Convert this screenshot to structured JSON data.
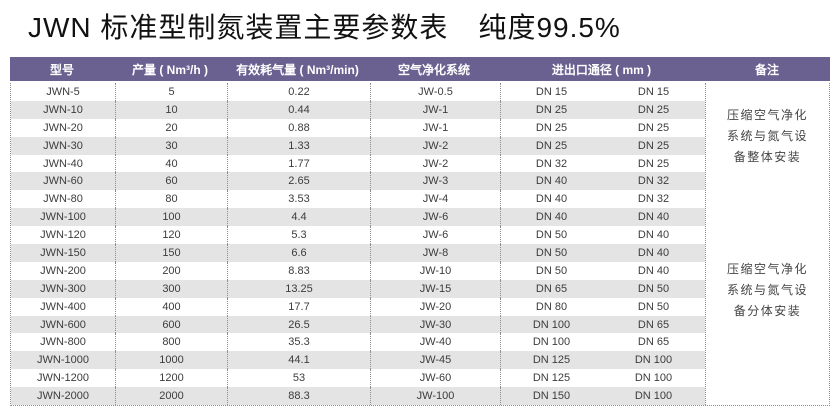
{
  "title": {
    "main": "JWN 标准型制氮装置主要参数表",
    "purity": "纯度99.5%"
  },
  "colors": {
    "header_bg": "#6a6191",
    "header_text": "#ffffff",
    "stripe_gray": "#e4e4e4",
    "body_text": "#3c3c3c",
    "dotted_border": "#8f8f8f"
  },
  "table": {
    "headers": {
      "model": "型号",
      "output": "产量 ( Nm³/h )",
      "air_consumption": "有效耗气量 ( Nm³/min)",
      "purification": "空气净化系统",
      "pipe_diameter": "进出口通径 ( mm )",
      "remark": "备注"
    },
    "rows": [
      {
        "model": "JWN-5",
        "output": "5",
        "air_consumption": "0.22",
        "purification": "JW-0.5",
        "dn_inlet": "DN 15",
        "dn_outlet": "DN 15"
      },
      {
        "model": "JWN-10",
        "output": "10",
        "air_consumption": "0.44",
        "purification": "JW-1",
        "dn_inlet": "DN 25",
        "dn_outlet": "DN 25"
      },
      {
        "model": "JWN-20",
        "output": "20",
        "air_consumption": "0.88",
        "purification": "JW-1",
        "dn_inlet": "DN 25",
        "dn_outlet": "DN 25"
      },
      {
        "model": "JWN-30",
        "output": "30",
        "air_consumption": "1.33",
        "purification": "JW-2",
        "dn_inlet": "DN 25",
        "dn_outlet": "DN 25"
      },
      {
        "model": "JWN-40",
        "output": "40",
        "air_consumption": "1.77",
        "purification": "JW-2",
        "dn_inlet": "DN 32",
        "dn_outlet": "DN 25"
      },
      {
        "model": "JWN-60",
        "output": "60",
        "air_consumption": "2.65",
        "purification": "JW-3",
        "dn_inlet": "DN 40",
        "dn_outlet": "DN 32"
      },
      {
        "model": "JWN-80",
        "output": "80",
        "air_consumption": "3.53",
        "purification": "JW-4",
        "dn_inlet": "DN 40",
        "dn_outlet": "DN 32"
      },
      {
        "model": "JWN-100",
        "output": "100",
        "air_consumption": "4.4",
        "purification": "JW-6",
        "dn_inlet": "DN 40",
        "dn_outlet": "DN 40"
      },
      {
        "model": "JWN-120",
        "output": "120",
        "air_consumption": "5.3",
        "purification": "JW-6",
        "dn_inlet": "DN 50",
        "dn_outlet": "DN 40"
      },
      {
        "model": "JWN-150",
        "output": "150",
        "air_consumption": "6.6",
        "purification": "JW-8",
        "dn_inlet": "DN 50",
        "dn_outlet": "DN 40"
      },
      {
        "model": "JWN-200",
        "output": "200",
        "air_consumption": "8.83",
        "purification": "JW-10",
        "dn_inlet": "DN 50",
        "dn_outlet": "DN 40"
      },
      {
        "model": "JWN-300",
        "output": "300",
        "air_consumption": "13.25",
        "purification": "JW-15",
        "dn_inlet": "DN 65",
        "dn_outlet": "DN 50"
      },
      {
        "model": "JWN-400",
        "output": "400",
        "air_consumption": "17.7",
        "purification": "JW-20",
        "dn_inlet": "DN 80",
        "dn_outlet": "DN 50"
      },
      {
        "model": "JWN-600",
        "output": "600",
        "air_consumption": "26.5",
        "purification": "JW-30",
        "dn_inlet": "DN 100",
        "dn_outlet": "DN 65"
      },
      {
        "model": "JWN-800",
        "output": "800",
        "air_consumption": "35.3",
        "purification": "JW-40",
        "dn_inlet": "DN 100",
        "dn_outlet": "DN 65"
      },
      {
        "model": "JWN-1000",
        "output": "1000",
        "air_consumption": "44.1",
        "purification": "JW-45",
        "dn_inlet": "DN 125",
        "dn_outlet": "DN 100"
      },
      {
        "model": "JWN-1200",
        "output": "1200",
        "air_consumption": "53",
        "purification": "JW-60",
        "dn_inlet": "DN 125",
        "dn_outlet": "DN 100"
      },
      {
        "model": "JWN-2000",
        "output": "2000",
        "air_consumption": "88.3",
        "purification": "JW-100",
        "dn_inlet": "DN 150",
        "dn_outlet": "DN 100"
      }
    ],
    "remarks": [
      {
        "lines": [
          "压缩空气净化",
          "系统与氮气设",
          "备整体安装"
        ]
      },
      {
        "lines": [
          "压缩空气净化",
          "系统与氮气设",
          "备分体安装"
        ]
      }
    ]
  }
}
